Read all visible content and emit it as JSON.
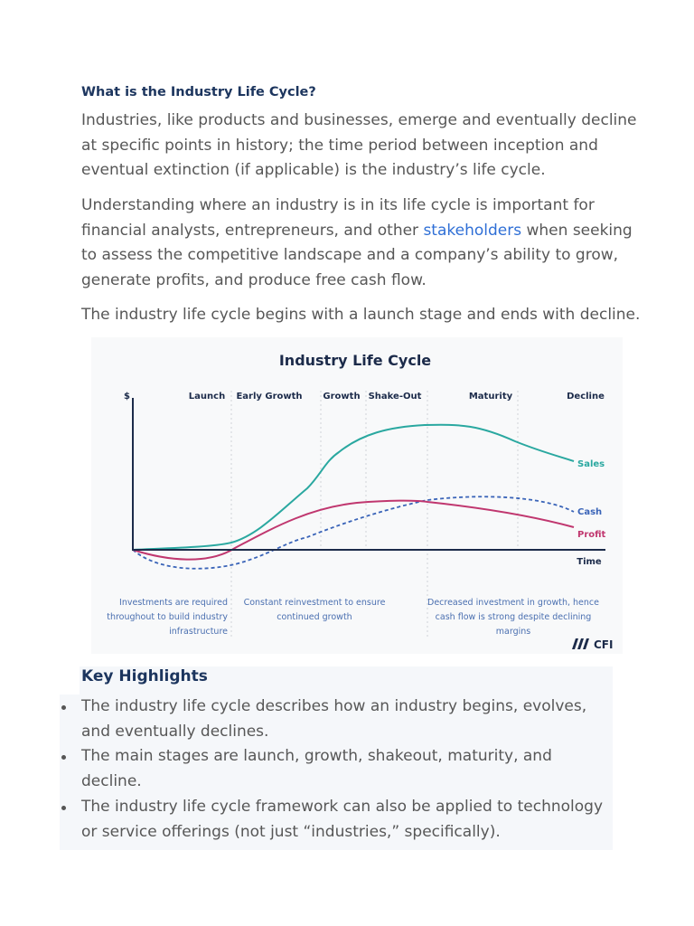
{
  "article": {
    "heading": "What is the Industry Life Cycle?",
    "para1": "Industries, like products and businesses, emerge and eventually decline at specific points in history; the time period between inception and eventual extinction (if applicable) is the industry’s life cycle.",
    "para2_before": "Understanding where an industry is in its life cycle is important for financial analysts, entrepreneurs, and other ",
    "para2_link": "stakeholders",
    "para2_after": " when seeking to assess the competitive landscape and a company’s ability to grow, generate profits, and produce free cash flow.",
    "para3": "The industry life cycle begins with a launch stage and ends with decline."
  },
  "figure": {
    "title": "Industry Life Cycle",
    "y_label": "$",
    "x_label": "Time",
    "stages": [
      "Launch",
      "Early Growth",
      "Growth",
      "Shake-Out",
      "Maturity",
      "Decline"
    ],
    "series": [
      {
        "name": "Sales",
        "color": "#2aa8a0",
        "style": "solid"
      },
      {
        "name": "Cash",
        "color": "#3a64b8",
        "style": "dashed"
      },
      {
        "name": "Profit",
        "color": "#c0376f",
        "style": "solid"
      }
    ],
    "notes": [
      [
        "Investments are required",
        "throughout to build industry",
        "infrastructure"
      ],
      [
        "Constant reinvestment to ensure",
        "continued growth"
      ],
      [
        "Decreased investment in growth, hence",
        "cash flow is strong despite declining",
        "margins"
      ]
    ],
    "logo": "CFI"
  },
  "highlights": {
    "heading": "Key Highlights",
    "items": [
      "The industry life cycle describes how an industry begins, evolves, and eventually declines.",
      "The main stages are launch, growth, shakeout, maturity, and decline.",
      "The industry life cycle framework can also be applied to technology or service offerings (not just “industries,” specifically)."
    ]
  }
}
